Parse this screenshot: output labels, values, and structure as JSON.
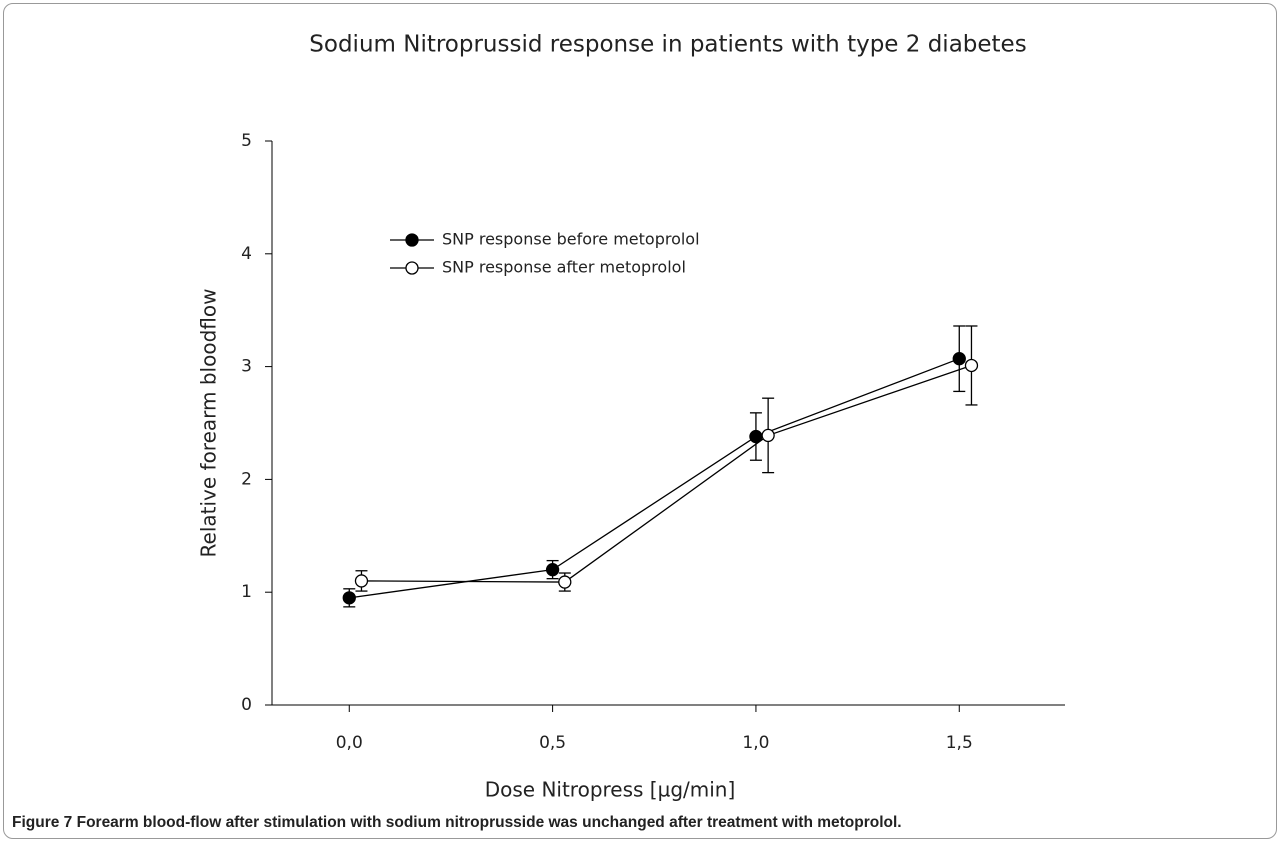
{
  "chart_data": {
    "type": "line",
    "title": "Sodium Nitroprussid response in patients with type 2 diabetes",
    "x_label": "Dose Nitropress [µg/min]",
    "y_label": "Relative forearm bloodflow",
    "caption": "Figure 7 Forearm blood-flow after stimulation with sodium nitroprusside was unchanged after treatment with metoprolol.",
    "xlim": [
      -0.19,
      1.76
    ],
    "ylim": [
      0,
      5
    ],
    "xticks": [
      {
        "value": 0,
        "label": "0,0"
      },
      {
        "value": 0.5,
        "label": "0,5"
      },
      {
        "value": 1,
        "label": "1,0"
      },
      {
        "value": 1.5,
        "label": "1,5"
      }
    ],
    "yticks": [
      0,
      1,
      2,
      3,
      4,
      5
    ],
    "series": [
      {
        "name": "SNP response before metoprolol",
        "color": "#000000",
        "marker": "filled",
        "x": [
          0,
          0.5,
          1,
          1.5
        ],
        "values": [
          0.95,
          1.2,
          2.38,
          3.07
        ],
        "errors": [
          0.08,
          0.08,
          0.21,
          0.29
        ]
      },
      {
        "name": "SNP response after metoprolol",
        "color": "#000000",
        "marker": "open",
        "x": [
          0.03,
          0.53,
          1.03,
          1.53
        ],
        "values": [
          1.1,
          1.09,
          2.39,
          3.01
        ],
        "errors": [
          0.09,
          0.08,
          0.33,
          0.35
        ]
      }
    ]
  }
}
